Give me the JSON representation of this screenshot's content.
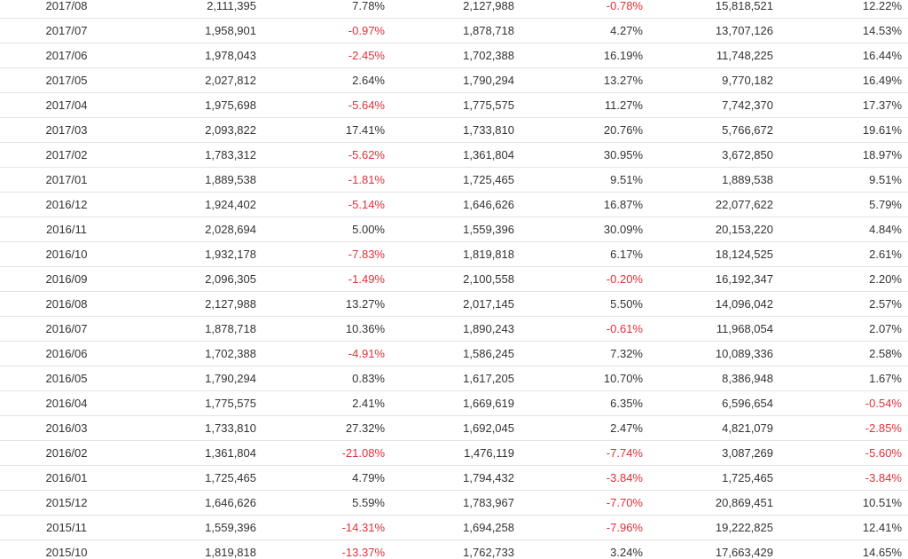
{
  "colors": {
    "text": "#333333",
    "negative": "#e0303a",
    "row_border": "#e3e3e3"
  },
  "rows": [
    [
      "2017/08",
      "2,111,395",
      "7.78%",
      "2,127,988",
      "-0.78%",
      "15,818,521",
      "12.22%"
    ],
    [
      "2017/07",
      "1,958,901",
      "-0.97%",
      "1,878,718",
      "4.27%",
      "13,707,126",
      "14.53%"
    ],
    [
      "2017/06",
      "1,978,043",
      "-2.45%",
      "1,702,388",
      "16.19%",
      "11,748,225",
      "16.44%"
    ],
    [
      "2017/05",
      "2,027,812",
      "2.64%",
      "1,790,294",
      "13.27%",
      "9,770,182",
      "16.49%"
    ],
    [
      "2017/04",
      "1,975,698",
      "-5.64%",
      "1,775,575",
      "11.27%",
      "7,742,370",
      "17.37%"
    ],
    [
      "2017/03",
      "2,093,822",
      "17.41%",
      "1,733,810",
      "20.76%",
      "5,766,672",
      "19.61%"
    ],
    [
      "2017/02",
      "1,783,312",
      "-5.62%",
      "1,361,804",
      "30.95%",
      "3,672,850",
      "18.97%"
    ],
    [
      "2017/01",
      "1,889,538",
      "-1.81%",
      "1,725,465",
      "9.51%",
      "1,889,538",
      "9.51%"
    ],
    [
      "2016/12",
      "1,924,402",
      "-5.14%",
      "1,646,626",
      "16.87%",
      "22,077,622",
      "5.79%"
    ],
    [
      "2016/11",
      "2,028,694",
      "5.00%",
      "1,559,396",
      "30.09%",
      "20,153,220",
      "4.84%"
    ],
    [
      "2016/10",
      "1,932,178",
      "-7.83%",
      "1,819,818",
      "6.17%",
      "18,124,525",
      "2.61%"
    ],
    [
      "2016/09",
      "2,096,305",
      "-1.49%",
      "2,100,558",
      "-0.20%",
      "16,192,347",
      "2.20%"
    ],
    [
      "2016/08",
      "2,127,988",
      "13.27%",
      "2,017,145",
      "5.50%",
      "14,096,042",
      "2.57%"
    ],
    [
      "2016/07",
      "1,878,718",
      "10.36%",
      "1,890,243",
      "-0.61%",
      "11,968,054",
      "2.07%"
    ],
    [
      "2016/06",
      "1,702,388",
      "-4.91%",
      "1,586,245",
      "7.32%",
      "10,089,336",
      "2.58%"
    ],
    [
      "2016/05",
      "1,790,294",
      "0.83%",
      "1,617,205",
      "10.70%",
      "8,386,948",
      "1.67%"
    ],
    [
      "2016/04",
      "1,775,575",
      "2.41%",
      "1,669,619",
      "6.35%",
      "6,596,654",
      "-0.54%"
    ],
    [
      "2016/03",
      "1,733,810",
      "27.32%",
      "1,692,045",
      "2.47%",
      "4,821,079",
      "-2.85%"
    ],
    [
      "2016/02",
      "1,361,804",
      "-21.08%",
      "1,476,119",
      "-7.74%",
      "3,087,269",
      "-5.60%"
    ],
    [
      "2016/01",
      "1,725,465",
      "4.79%",
      "1,794,432",
      "-3.84%",
      "1,725,465",
      "-3.84%"
    ],
    [
      "2015/12",
      "1,646,626",
      "5.59%",
      "1,783,967",
      "-7.70%",
      "20,869,451",
      "10.51%"
    ],
    [
      "2015/11",
      "1,559,396",
      "-14.31%",
      "1,694,258",
      "-7.96%",
      "19,222,825",
      "12.41%"
    ],
    [
      "2015/10",
      "1,819,818",
      "-13.37%",
      "1,762,733",
      "3.24%",
      "17,663,429",
      "14.65%"
    ]
  ]
}
